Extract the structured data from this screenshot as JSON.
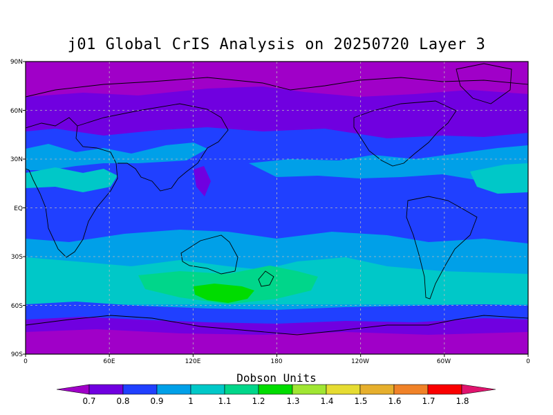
{
  "title": "j01 Global CrIS Analysis on 20250720 Layer 3",
  "colorbar": {
    "title": "Dobson Units",
    "levels": [
      "0.7",
      "0.8",
      "0.9",
      "1",
      "1.1",
      "1.2",
      "1.3",
      "1.4",
      "1.5",
      "1.6",
      "1.7",
      "1.8"
    ],
    "colors": [
      "#a000c8",
      "#7000e0",
      "#2040ff",
      "#00a0e8",
      "#00c8c8",
      "#00d68a",
      "#00dc00",
      "#a0e632",
      "#e6dc32",
      "#e6af2d",
      "#f08228",
      "#fa0000",
      "#e0146e"
    ]
  },
  "axes": {
    "lat_labels": [
      "90N",
      "60N",
      "30N",
      "EQ",
      "30S",
      "60S",
      "90S"
    ],
    "lon_labels": [
      "0",
      "60E",
      "120E",
      "180",
      "120W",
      "60W",
      "0"
    ]
  },
  "chart_data": {
    "type": "heatmap",
    "title": "j01 Global CrIS Analysis on 20250720 Layer 3",
    "colorbar_label": "Dobson Units",
    "xlim": [
      0,
      360
    ],
    "ylim": [
      -90,
      90
    ],
    "zones": [
      {
        "lat": [
          90,
          60
        ],
        "value_range": [
          0.7,
          0.8
        ]
      },
      {
        "lat": [
          60,
          40
        ],
        "value_range": [
          0.8,
          0.9
        ]
      },
      {
        "lat": [
          40,
          20
        ],
        "value_range": [
          0.9,
          1.1
        ]
      },
      {
        "lat": [
          20,
          -15
        ],
        "value_range": [
          0.8,
          1.0
        ]
      },
      {
        "lat": [
          -15,
          -40
        ],
        "value_range": [
          0.9,
          1.1
        ]
      },
      {
        "lat": [
          -40,
          -55
        ],
        "value_range": [
          1.0,
          1.3
        ]
      },
      {
        "lat": [
          -55,
          -65
        ],
        "value_range": [
          0.9,
          1.0
        ]
      },
      {
        "lat": [
          -65,
          -90
        ],
        "value_range": [
          0.7,
          0.8
        ]
      }
    ],
    "maximum": {
      "lon": 140,
      "lat": -52,
      "value_range": [
        1.2,
        1.3
      ]
    },
    "grid": true
  }
}
